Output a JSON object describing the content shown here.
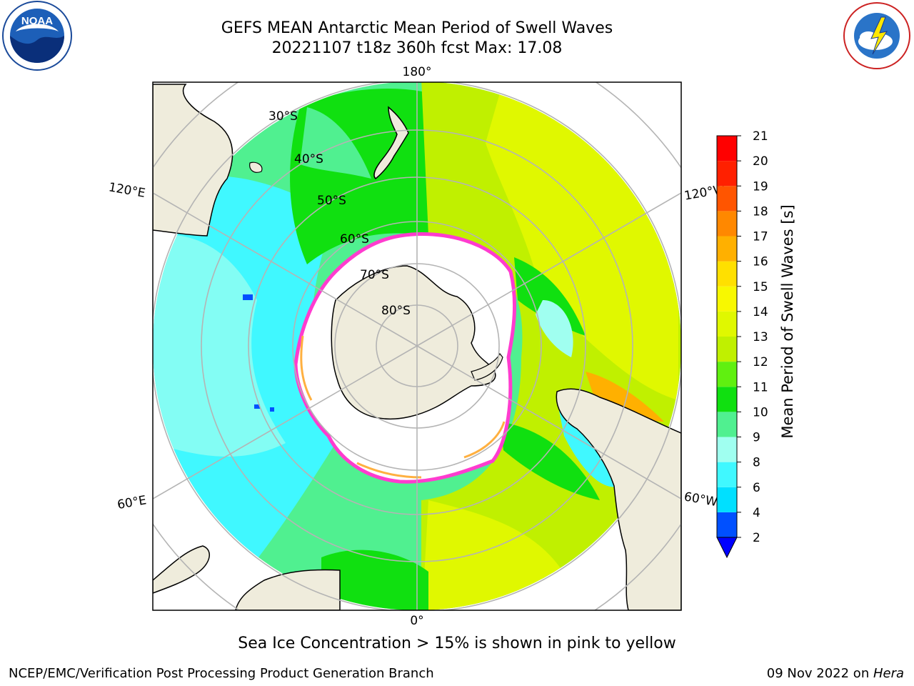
{
  "title": {
    "line1": "GEFS MEAN Antarctic Mean Period of Swell Waves",
    "line2": "20221107 t18z 360h fcst   Max: 17.08"
  },
  "logos": {
    "left": {
      "name": "noaa-logo",
      "text": "NOAA",
      "ring_text": "NATIONAL OCEANIC AND ATMOSPHERIC ADMINISTRATION · U.S. DEPARTMENT OF COMMERCE"
    },
    "right": {
      "name": "nws-logo",
      "ring_text": "NATIONAL WEATHER SERVICE"
    }
  },
  "map": {
    "projection": "south-polar-stereographic",
    "longitude_labels": {
      "top": "180°",
      "bottom": "0°",
      "left_upper": "120°E",
      "left_lower": "60°E",
      "right_upper": "120°W",
      "right_lower": "60°W"
    },
    "latitude_labels": [
      "30°S",
      "40°S",
      "50°S",
      "60°S",
      "70°S",
      "80°S"
    ],
    "colors": {
      "land": "#efecdc",
      "sea_ice": "#ffffff",
      "ice_edge_pink": "#ff3ccf",
      "ice_edge_orange": "#ffb040",
      "grid": "#b4b4b4"
    }
  },
  "colorbar": {
    "label": "Mean Period of Swell Waves [s]",
    "ticks": [
      "2",
      "4",
      "6",
      "8",
      "9",
      "10",
      "11",
      "12",
      "13",
      "14",
      "15",
      "16",
      "17",
      "18",
      "19",
      "20",
      "21"
    ],
    "colors": [
      "#0050ff",
      "#00e0ff",
      "#40f8ff",
      "#a0fff0",
      "#50f090",
      "#10e010",
      "#60f010",
      "#c0f000",
      "#e0f800",
      "#f8f800",
      "#ffe000",
      "#ffb000",
      "#ff8800",
      "#ff5500",
      "#ff2000",
      "#ff0000"
    ],
    "under_color": "#0000ff"
  },
  "caption": "Sea Ice Concentration > 15% is shown in pink to yellow",
  "footer": {
    "left": "NCEP/EMC/Verification Post Processing Product Generation Branch",
    "right_date": "09 Nov 2022 on ",
    "right_host": "Hera"
  }
}
